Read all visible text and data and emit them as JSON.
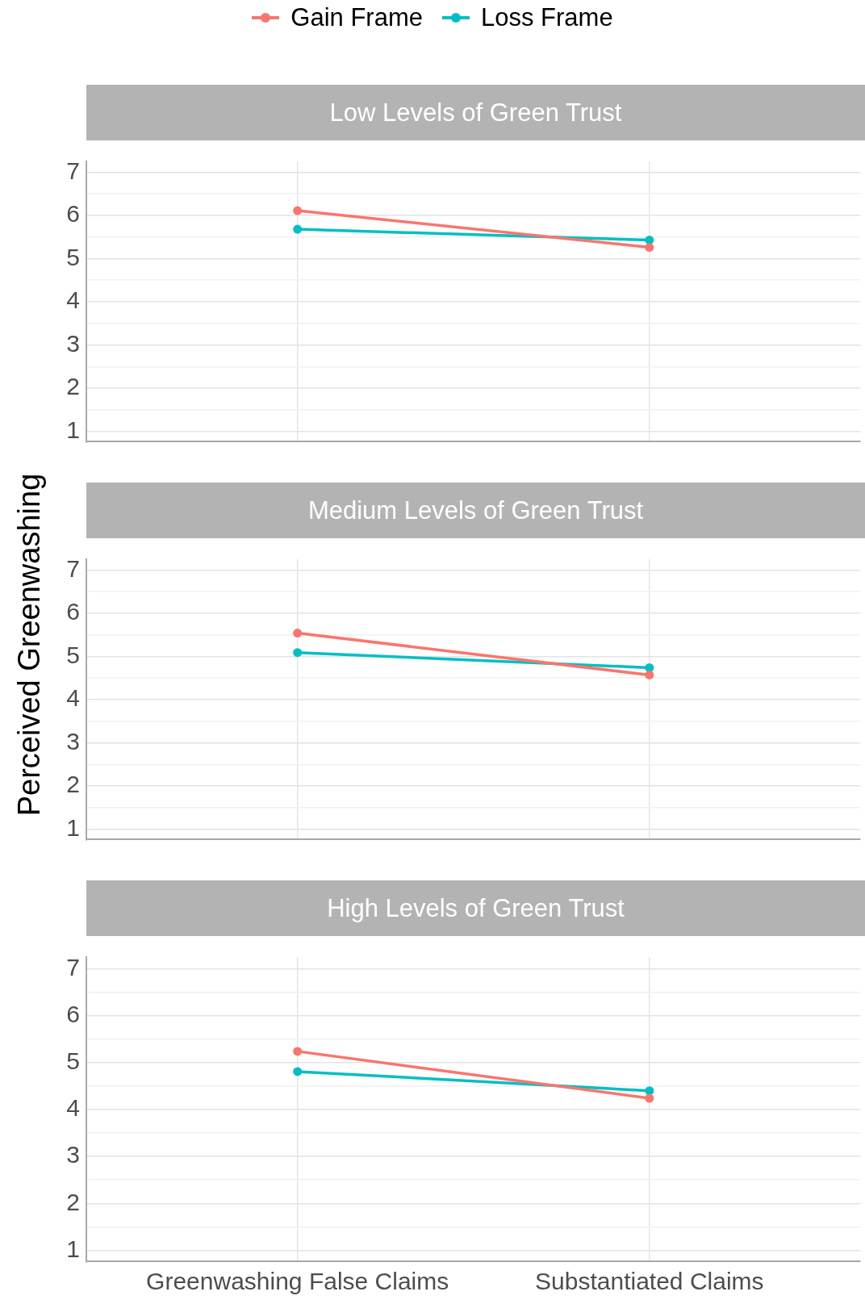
{
  "chart_data": [
    {
      "type": "line",
      "title": "Low Levels of Green Trust",
      "series": [
        {
          "name": "Gain Frame",
          "color": "#f8766d",
          "values": [
            6.11,
            5.26
          ]
        },
        {
          "name": "Loss Frame",
          "color": "#00bfc4",
          "values": [
            5.68,
            5.43
          ]
        }
      ],
      "ylim": [
        0.75,
        7.25
      ],
      "yticks": [
        1,
        {
          "value": 1.5,
          "label": null
        },
        2,
        {
          "value": 2.5,
          "label": null
        },
        3,
        {
          "value": 3.5,
          "label": null
        },
        4,
        {
          "value": 4.5,
          "label": null
        },
        5,
        {
          "value": 5.5,
          "label": null
        },
        6,
        {
          "value": 6.5,
          "label": null
        },
        7
      ],
      "grid": true,
      "legend": "top",
      "marker": "circle",
      "tick_labels": "y"
    },
    {
      "type": "line",
      "title": "Medium Levels of Green Trust",
      "ylabel": "Perceived Greenwashing",
      "series": [
        {
          "color": "#f8766d",
          "values": [
            5.54,
            4.57
          ]
        },
        {
          "color": "#00bfc4",
          "values": [
            5.09,
            4.74
          ]
        }
      ],
      "ylim": [
        0.75,
        7.25
      ],
      "yticks": [
        1,
        {
          "value": 1.5,
          "label": null
        },
        2,
        {
          "value": 2.5,
          "label": null
        },
        3,
        {
          "value": 3.5,
          "label": null
        },
        4,
        {
          "value": 4.5,
          "label": null
        },
        5,
        {
          "value": 5.5,
          "label": null
        },
        6,
        {
          "value": 6.5,
          "label": null
        },
        7
      ],
      "grid": true,
      "marker": "circle",
      "tick_labels": "y"
    },
    {
      "type": "line",
      "title": "High Levels of Green Trust",
      "categories": [
        "Greenwashing False Claims",
        "Substantiated Claims"
      ],
      "series": [
        {
          "color": "#f8766d",
          "values": [
            5.24,
            4.24
          ]
        },
        {
          "color": "#00bfc4",
          "values": [
            4.81,
            4.4
          ]
        }
      ],
      "ylim": [
        0.75,
        7.25
      ],
      "yticks": [
        1,
        {
          "value": 1.5,
          "label": null
        },
        2,
        {
          "value": 2.5,
          "label": null
        },
        3,
        {
          "value": 3.5,
          "label": null
        },
        4,
        {
          "value": 4.5,
          "label": null
        },
        5,
        {
          "value": 5.5,
          "label": null
        },
        6,
        {
          "value": 6.5,
          "label": null
        },
        7
      ],
      "grid": true,
      "marker": "circle"
    }
  ]
}
